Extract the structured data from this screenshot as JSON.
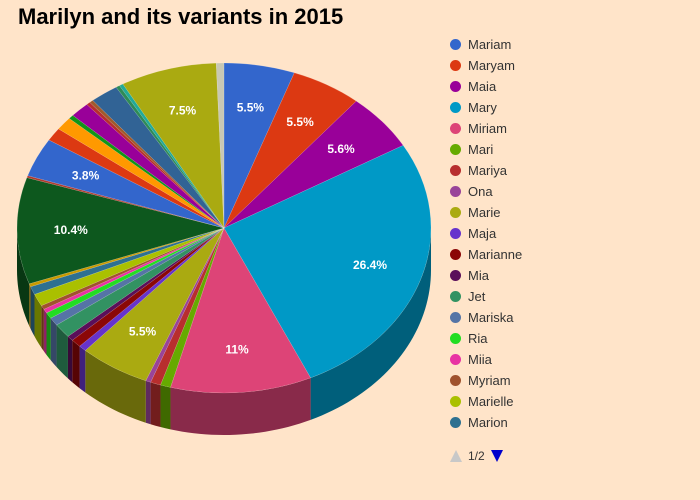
{
  "chart_data": {
    "type": "pie",
    "title": "Marilyn and its variants in 2015",
    "slices": [
      {
        "name": "Mariam",
        "value": 5.5,
        "color": "#3366cc",
        "label": "5.5%"
      },
      {
        "name": "Maryam",
        "value": 5.5,
        "color": "#dc3912",
        "label": "5.5%"
      },
      {
        "name": "Maia",
        "value": 5.6,
        "color": "#990099",
        "label": "5.6%"
      },
      {
        "name": "Mary",
        "value": 26.4,
        "color": "#0099c6",
        "label": "26.4%"
      },
      {
        "name": "Miriam",
        "value": 11.0,
        "color": "#dd4477",
        "label": "11%"
      },
      {
        "name": "Mari",
        "value": 0.8,
        "color": "#66aa00",
        "label": ""
      },
      {
        "name": "Mariya",
        "value": 0.8,
        "color": "#b82e2e",
        "label": ""
      },
      {
        "name": "Ona",
        "value": 0.4,
        "color": "#994499",
        "label": ""
      },
      {
        "name": "Marie",
        "value": 5.5,
        "color": "#aaaa11",
        "label": "5.5%"
      },
      {
        "name": "Maja",
        "value": 0.6,
        "color": "#6633cc",
        "label": ""
      },
      {
        "name": "Marianne",
        "value": 0.8,
        "color": "#8b0707",
        "label": ""
      },
      {
        "name": "Mia",
        "value": 0.5,
        "color": "#5a0f5a",
        "label": ""
      },
      {
        "name": "Jet",
        "value": 1.4,
        "color": "#329262",
        "label": ""
      },
      {
        "name": "Mariska",
        "value": 0.8,
        "color": "#5574a6",
        "label": ""
      },
      {
        "name": "Ria",
        "value": 0.6,
        "color": "#22dd22",
        "label": ""
      },
      {
        "name": "Miia",
        "value": 0.4,
        "color": "#e833a3",
        "label": ""
      },
      {
        "name": "Myriam",
        "value": 0.4,
        "color": "#a0522d",
        "label": ""
      },
      {
        "name": "Marielle",
        "value": 1.2,
        "color": "#aac000",
        "label": ""
      },
      {
        "name": "Marion",
        "value": 0.8,
        "color": "#2e7090",
        "label": ""
      },
      {
        "name": "",
        "value": 0.3,
        "color": "#c99a00",
        "label": ""
      },
      {
        "name": "",
        "value": 10.4,
        "color": "#0d581e",
        "label": "10.4%"
      },
      {
        "name": "",
        "value": 0.2,
        "color": "#b03a2e",
        "label": ""
      },
      {
        "name": "",
        "value": 3.8,
        "color": "#3366cc",
        "label": "3.8%"
      },
      {
        "name": "",
        "value": 1.3,
        "color": "#dc3912",
        "label": ""
      },
      {
        "name": "",
        "value": 1.3,
        "color": "#ff9900",
        "label": ""
      },
      {
        "name": "",
        "value": 0.4,
        "color": "#109618",
        "label": ""
      },
      {
        "name": "",
        "value": 1.5,
        "color": "#990099",
        "label": ""
      },
      {
        "name": "",
        "value": 0.3,
        "color": "#b82e2e",
        "label": ""
      },
      {
        "name": "",
        "value": 0.3,
        "color": "#a05a2c",
        "label": ""
      },
      {
        "name": "",
        "value": 2.2,
        "color": "#316395",
        "label": ""
      },
      {
        "name": "",
        "value": 0.3,
        "color": "#2e8b57",
        "label": ""
      },
      {
        "name": "",
        "value": 0.3,
        "color": "#22aa99",
        "label": ""
      },
      {
        "name": "",
        "value": 7.5,
        "color": "#aaaa11",
        "label": "7.5%"
      },
      {
        "name": "",
        "value": 0.6,
        "color": "#c8c8b4",
        "label": ""
      }
    ],
    "legend": {
      "position": "right",
      "page": "1/2"
    }
  }
}
